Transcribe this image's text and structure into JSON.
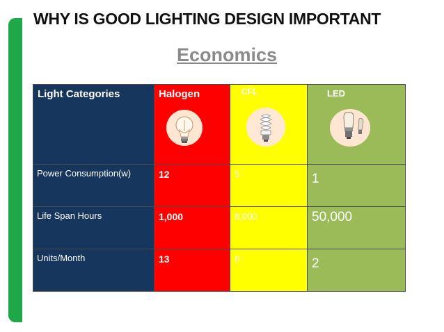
{
  "slide": {
    "title": "WHY IS GOOD LIGHTING DESIGN IMPORTANT",
    "subtitle": "Economics"
  },
  "table": {
    "corner_label": "Light Categories",
    "columns": [
      {
        "label": "Halogen",
        "color": "#ff0000",
        "icon": "halogen-bulb-icon"
      },
      {
        "label": "CFL",
        "color": "#ffff00",
        "icon": "cfl-bulb-icon"
      },
      {
        "label": "LED",
        "color": "#9bbb59",
        "icon": "led-bulb-icon"
      }
    ],
    "rows": [
      {
        "label": "Power Consumption(w)",
        "values": [
          "12",
          "5",
          "1"
        ]
      },
      {
        "label": "Life Span Hours",
        "values": [
          "1,000",
          "8,000",
          "50,000"
        ]
      },
      {
        "label": "Units/Month",
        "values": [
          "13",
          "6",
          "2"
        ]
      }
    ],
    "first_column_color": "#17365d"
  },
  "accent_color": "#1fa84a"
}
